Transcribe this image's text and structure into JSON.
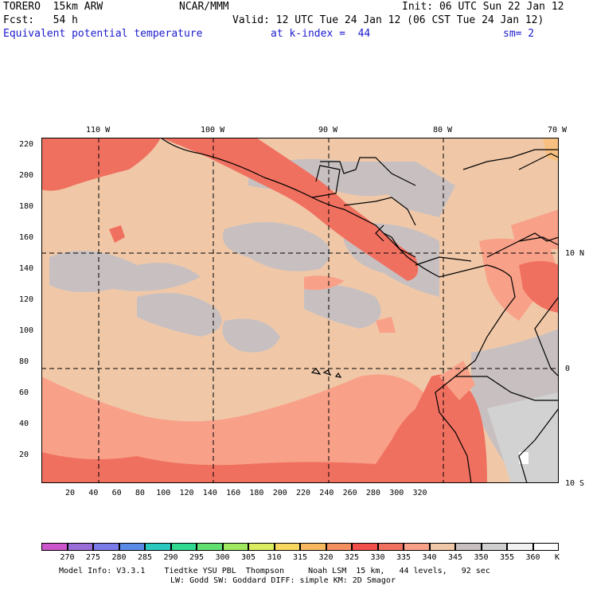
{
  "header": {
    "model": "TORERO  15km ARW",
    "org": "NCAR/MMM",
    "init": "Init: 06 UTC Sun 22 Jan 12",
    "fcst": "Fcst:   54 h",
    "valid": "Valid: 12 UTC Tue 24 Jan 12 (06 CST Tue 24 Jan 12)",
    "field": "Equivalent potential temperature",
    "level": "at k-index =  44",
    "smooth": "sm= 2"
  },
  "map": {
    "top_lon_labels": [
      "110 W",
      "100 W",
      "90 W",
      "80 W",
      "70 W"
    ],
    "right_lat_labels": [
      "10 N",
      "0",
      "10 S"
    ],
    "left_y_ticks": [
      "220",
      "200",
      "180",
      "160",
      "140",
      "120",
      "100",
      "80",
      "60",
      "40",
      "20"
    ],
    "bottom_x_ticks": [
      "20",
      "40",
      "60",
      "80",
      "100",
      "120",
      "140",
      "160",
      "180",
      "200",
      "220",
      "240",
      "260",
      "280",
      "300",
      "320"
    ]
  },
  "colorbar": {
    "unit": "K",
    "labels": [
      "270",
      "275",
      "280",
      "285",
      "290",
      "295",
      "300",
      "305",
      "310",
      "315",
      "320",
      "325",
      "330",
      "335",
      "340",
      "345",
      "350",
      "355",
      "360"
    ],
    "colors": [
      "#cc55cc",
      "#9a6ed8",
      "#7a7ae8",
      "#5a8ae8",
      "#2ac8c0",
      "#30d890",
      "#60e070",
      "#a0e860",
      "#dcec60",
      "#f6d860",
      "#f8b860",
      "#f49060",
      "#f2504a",
      "#f07060",
      "#f8a088",
      "#f0c8a8",
      "#c8c0c0",
      "#d0d0d0",
      "#f2f2f2",
      "#ffffff"
    ]
  },
  "footer": {
    "line1": "Model Info: V3.3.1    Tiedtke YSU PBL  Thompson     Noah LSM  15 km,   44 levels,   92 sec",
    "line2": "LW: Godd SW: Goddard DIFF: simple KM: 2D Smagor"
  }
}
